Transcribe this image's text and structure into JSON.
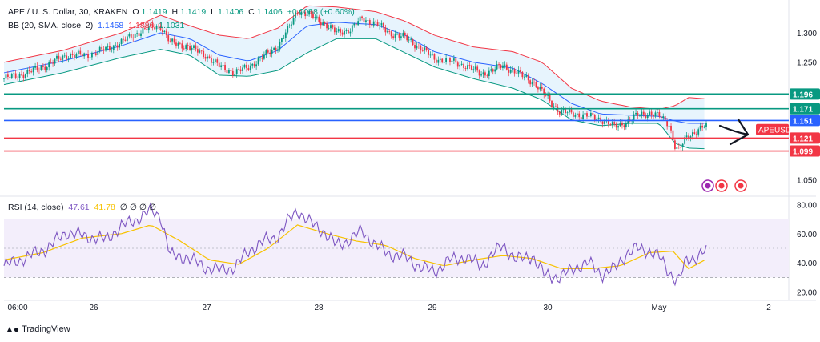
{
  "header": {
    "symbol": "APE / U. S. Dollar, 30, KRAKEN",
    "o_label": "O",
    "o": "1.1419",
    "h_label": "H",
    "h": "1.1419",
    "l_label": "L",
    "l": "1.1406",
    "c_label": "C",
    "c": "1.1406",
    "change": "+0.0068 (+0.60%)"
  },
  "bb_legend": {
    "label": "BB (20, SMA, close, 2)",
    "basis": "1.1458",
    "upper": "1.1886",
    "lower": "1.1031"
  },
  "rsi_legend": {
    "label": "RSI (14, close)",
    "rsi": "47.61",
    "ma": "41.78",
    "extras": "∅ ∅ ∅ ∅"
  },
  "brand": {
    "name": "TradingView"
  },
  "colors": {
    "up": "#089981",
    "down": "#f23645",
    "blue": "#2962ff",
    "bb_upper": "#f23645",
    "bb_lower": "#089981",
    "bb_basis": "#2962ff",
    "bb_fill": "#e3f2fd",
    "rsi_line": "#7e57c2",
    "rsi_ma": "#f7c200",
    "rsi_band": "#f3eefb"
  },
  "chart_data": [
    {
      "type": "candlestick",
      "title": "APE / U. S. Dollar, 30, KRAKEN",
      "x_ticks": [
        "06:00",
        "26",
        "27",
        "28",
        "29",
        "30",
        "May",
        "2"
      ],
      "y_ticks": [
        "1.300",
        "1.250",
        "1.050"
      ],
      "ylim": [
        1.033,
        1.345
      ],
      "price_label": "APEUSD",
      "price_label_color": "#f23645",
      "anchors": [
        {
          "t": 0,
          "p": 1.222
        },
        {
          "t": 12,
          "p": 1.232
        },
        {
          "t": 22,
          "p": 1.245
        },
        {
          "t": 32,
          "p": 1.262
        },
        {
          "t": 42,
          "p": 1.262
        },
        {
          "t": 52,
          "p": 1.272
        },
        {
          "t": 60,
          "p": 1.284
        },
        {
          "t": 68,
          "p": 1.3
        },
        {
          "t": 75,
          "p": 1.309
        },
        {
          "t": 80,
          "p": 1.312
        },
        {
          "t": 85,
          "p": 1.283
        },
        {
          "t": 93,
          "p": 1.278
        },
        {
          "t": 103,
          "p": 1.262
        },
        {
          "t": 110,
          "p": 1.243
        },
        {
          "t": 118,
          "p": 1.232
        },
        {
          "t": 125,
          "p": 1.242
        },
        {
          "t": 133,
          "p": 1.26
        },
        {
          "t": 140,
          "p": 1.278
        },
        {
          "t": 146,
          "p": 1.31
        },
        {
          "t": 150,
          "p": 1.338
        },
        {
          "t": 156,
          "p": 1.33
        },
        {
          "t": 163,
          "p": 1.318
        },
        {
          "t": 170,
          "p": 1.3
        },
        {
          "t": 177,
          "p": 1.306
        },
        {
          "t": 183,
          "p": 1.324
        },
        {
          "t": 190,
          "p": 1.316
        },
        {
          "t": 197,
          "p": 1.3
        },
        {
          "t": 205,
          "p": 1.292
        },
        {
          "t": 213,
          "p": 1.274
        },
        {
          "t": 220,
          "p": 1.256
        },
        {
          "t": 228,
          "p": 1.252
        },
        {
          "t": 236,
          "p": 1.244
        },
        {
          "t": 244,
          "p": 1.23
        },
        {
          "t": 250,
          "p": 1.236
        },
        {
          "t": 255,
          "p": 1.245
        },
        {
          "t": 262,
          "p": 1.232
        },
        {
          "t": 270,
          "p": 1.218
        },
        {
          "t": 276,
          "p": 1.196
        },
        {
          "t": 284,
          "p": 1.166
        },
        {
          "t": 292,
          "p": 1.162
        },
        {
          "t": 299,
          "p": 1.158
        },
        {
          "t": 306,
          "p": 1.152
        },
        {
          "t": 312,
          "p": 1.14
        },
        {
          "t": 318,
          "p": 1.148
        },
        {
          "t": 324,
          "p": 1.16
        },
        {
          "t": 330,
          "p": 1.164
        },
        {
          "t": 335,
          "p": 1.158
        },
        {
          "t": 340,
          "p": 1.145
        },
        {
          "t": 343,
          "p": 1.108
        },
        {
          "t": 345,
          "p": 1.1
        },
        {
          "t": 349,
          "p": 1.122
        },
        {
          "t": 354,
          "p": 1.134
        },
        {
          "t": 358,
          "p": 1.141
        }
      ],
      "bands": [
        {
          "t": 0,
          "u": 1.25,
          "b": 1.232,
          "l": 1.212
        },
        {
          "t": 30,
          "u": 1.27,
          "b": 1.252,
          "l": 1.232
        },
        {
          "t": 60,
          "u": 1.3,
          "b": 1.278,
          "l": 1.258
        },
        {
          "t": 80,
          "u": 1.33,
          "b": 1.3,
          "l": 1.272
        },
        {
          "t": 95,
          "u": 1.312,
          "b": 1.29,
          "l": 1.262
        },
        {
          "t": 110,
          "u": 1.296,
          "b": 1.262,
          "l": 1.228
        },
        {
          "t": 125,
          "u": 1.29,
          "b": 1.252,
          "l": 1.226
        },
        {
          "t": 140,
          "u": 1.308,
          "b": 1.27,
          "l": 1.236
        },
        {
          "t": 155,
          "u": 1.346,
          "b": 1.312,
          "l": 1.266
        },
        {
          "t": 170,
          "u": 1.344,
          "b": 1.318,
          "l": 1.29
        },
        {
          "t": 190,
          "u": 1.336,
          "b": 1.314,
          "l": 1.29
        },
        {
          "t": 205,
          "u": 1.32,
          "b": 1.296,
          "l": 1.266
        },
        {
          "t": 220,
          "u": 1.296,
          "b": 1.268,
          "l": 1.242
        },
        {
          "t": 240,
          "u": 1.276,
          "b": 1.25,
          "l": 1.222
        },
        {
          "t": 260,
          "u": 1.268,
          "b": 1.24,
          "l": 1.206
        },
        {
          "t": 275,
          "u": 1.25,
          "b": 1.214,
          "l": 1.186
        },
        {
          "t": 290,
          "u": 1.206,
          "b": 1.18,
          "l": 1.152
        },
        {
          "t": 305,
          "u": 1.184,
          "b": 1.162,
          "l": 1.142
        },
        {
          "t": 320,
          "u": 1.174,
          "b": 1.16,
          "l": 1.146
        },
        {
          "t": 335,
          "u": 1.17,
          "b": 1.158,
          "l": 1.146
        },
        {
          "t": 343,
          "u": 1.176,
          "b": 1.15,
          "l": 1.112
        },
        {
          "t": 350,
          "u": 1.19,
          "b": 1.146,
          "l": 1.104
        },
        {
          "t": 358,
          "u": 1.188,
          "b": 1.146,
          "l": 1.103
        }
      ],
      "hlines": [
        {
          "value": 1.196,
          "label": "1.196",
          "color": "#089981"
        },
        {
          "value": 1.171,
          "label": "1.171",
          "color": "#089981"
        },
        {
          "value": 1.151,
          "label": "1.151",
          "color": "#2962ff"
        },
        {
          "value": 1.121,
          "label": "1.121",
          "color": "#f23645"
        },
        {
          "value": 1.099,
          "label": "1.099",
          "color": "#f23645"
        }
      ]
    },
    {
      "type": "line",
      "title": "RSI (14, close)",
      "y_ticks": [
        "80.00",
        "60.00",
        "40.00",
        "20.00"
      ],
      "ylim": [
        17,
        83
      ],
      "bands": {
        "upper": 70,
        "middle": 50,
        "lower": 30
      },
      "anchors": [
        {
          "t": 0,
          "v": 38
        },
        {
          "t": 12,
          "v": 44
        },
        {
          "t": 22,
          "v": 50
        },
        {
          "t": 32,
          "v": 61
        },
        {
          "t": 42,
          "v": 58
        },
        {
          "t": 52,
          "v": 56
        },
        {
          "t": 60,
          "v": 65
        },
        {
          "t": 68,
          "v": 70
        },
        {
          "t": 75,
          "v": 76
        },
        {
          "t": 80,
          "v": 72
        },
        {
          "t": 85,
          "v": 45
        },
        {
          "t": 93,
          "v": 44
        },
        {
          "t": 103,
          "v": 37
        },
        {
          "t": 110,
          "v": 35
        },
        {
          "t": 118,
          "v": 37
        },
        {
          "t": 125,
          "v": 48
        },
        {
          "t": 133,
          "v": 55
        },
        {
          "t": 140,
          "v": 58
        },
        {
          "t": 146,
          "v": 70
        },
        {
          "t": 150,
          "v": 76
        },
        {
          "t": 156,
          "v": 68
        },
        {
          "t": 163,
          "v": 62
        },
        {
          "t": 170,
          "v": 52
        },
        {
          "t": 177,
          "v": 56
        },
        {
          "t": 183,
          "v": 62
        },
        {
          "t": 190,
          "v": 52
        },
        {
          "t": 197,
          "v": 46
        },
        {
          "t": 205,
          "v": 44
        },
        {
          "t": 213,
          "v": 37
        },
        {
          "t": 220,
          "v": 34
        },
        {
          "t": 228,
          "v": 42
        },
        {
          "t": 236,
          "v": 44
        },
        {
          "t": 244,
          "v": 38
        },
        {
          "t": 250,
          "v": 46
        },
        {
          "t": 255,
          "v": 52
        },
        {
          "t": 262,
          "v": 42
        },
        {
          "t": 270,
          "v": 45
        },
        {
          "t": 276,
          "v": 32
        },
        {
          "t": 284,
          "v": 30
        },
        {
          "t": 292,
          "v": 37
        },
        {
          "t": 299,
          "v": 40
        },
        {
          "t": 306,
          "v": 32
        },
        {
          "t": 312,
          "v": 36
        },
        {
          "t": 318,
          "v": 46
        },
        {
          "t": 324,
          "v": 50
        },
        {
          "t": 330,
          "v": 48
        },
        {
          "t": 335,
          "v": 44
        },
        {
          "t": 340,
          "v": 34
        },
        {
          "t": 343,
          "v": 29
        },
        {
          "t": 345,
          "v": 28
        },
        {
          "t": 349,
          "v": 42
        },
        {
          "t": 354,
          "v": 44
        },
        {
          "t": 358,
          "v": 47.61
        }
      ],
      "ma_anchors": [
        {
          "t": 0,
          "v": 42
        },
        {
          "t": 20,
          "v": 47
        },
        {
          "t": 40,
          "v": 57
        },
        {
          "t": 60,
          "v": 60
        },
        {
          "t": 75,
          "v": 66
        },
        {
          "t": 90,
          "v": 55
        },
        {
          "t": 105,
          "v": 42
        },
        {
          "t": 120,
          "v": 39
        },
        {
          "t": 135,
          "v": 50
        },
        {
          "t": 150,
          "v": 66
        },
        {
          "t": 165,
          "v": 60
        },
        {
          "t": 180,
          "v": 55
        },
        {
          "t": 195,
          "v": 52
        },
        {
          "t": 210,
          "v": 43
        },
        {
          "t": 225,
          "v": 38
        },
        {
          "t": 240,
          "v": 42
        },
        {
          "t": 255,
          "v": 45
        },
        {
          "t": 270,
          "v": 43
        },
        {
          "t": 285,
          "v": 36
        },
        {
          "t": 300,
          "v": 36
        },
        {
          "t": 315,
          "v": 38
        },
        {
          "t": 330,
          "v": 47
        },
        {
          "t": 342,
          "v": 48
        },
        {
          "t": 350,
          "v": 36
        },
        {
          "t": 358,
          "v": 41.78
        }
      ]
    }
  ]
}
